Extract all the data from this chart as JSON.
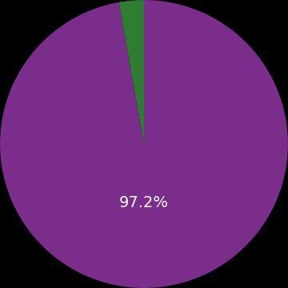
{
  "values": [
    97.2,
    2.8
  ],
  "colors": [
    "#7b2d8b",
    "#2e7d32"
  ],
  "label_text": "97.2%",
  "label_color": "#ffffff",
  "label_fontsize": 14,
  "background_color": "#000000",
  "startangle": 90
}
